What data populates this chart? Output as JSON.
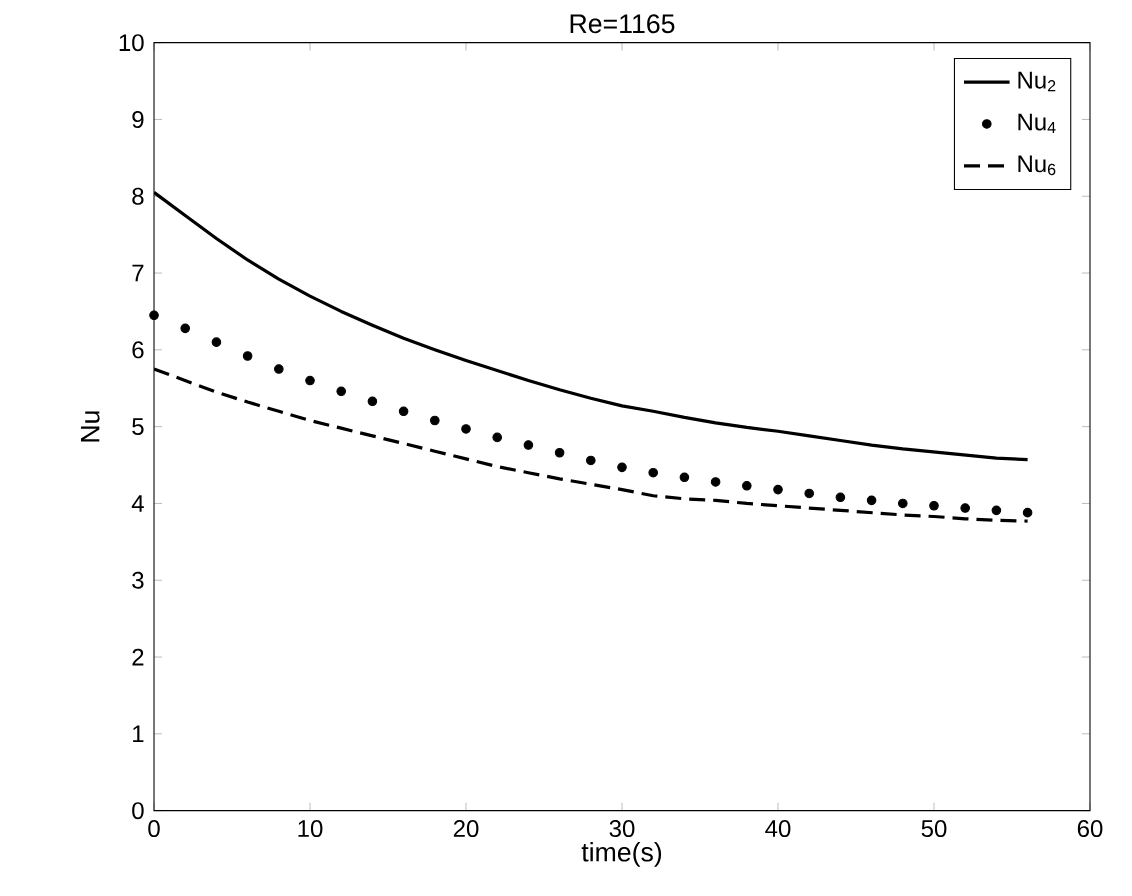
{
  "chart_data": {
    "type": "line",
    "title": "Re=1165",
    "xlabel": "time(s)",
    "ylabel": "Nu",
    "xlim": [
      0,
      60
    ],
    "xticks": [
      0,
      10,
      20,
      30,
      40,
      50,
      60
    ],
    "ylim": [
      0,
      10
    ],
    "yticks": [
      0,
      1,
      2,
      3,
      4,
      5,
      6,
      7,
      8,
      9,
      10
    ],
    "grid": false,
    "legend": "top right",
    "x": [
      0,
      2,
      4,
      6,
      8,
      10,
      12,
      14,
      16,
      18,
      20,
      22,
      24,
      26,
      28,
      30,
      32,
      34,
      36,
      38,
      40,
      42,
      44,
      46,
      48,
      50,
      52,
      54,
      56
    ],
    "series": [
      {
        "name": "Nu$_{2}$",
        "line_style": "solid",
        "color": "#000000",
        "values": [
          8.05,
          7.75,
          7.45,
          7.17,
          6.92,
          6.7,
          6.5,
          6.32,
          6.15,
          6.0,
          5.86,
          5.73,
          5.6,
          5.48,
          5.37,
          5.27,
          5.2,
          5.12,
          5.05,
          4.99,
          4.94,
          4.88,
          4.82,
          4.76,
          4.71,
          4.67,
          4.63,
          4.59,
          4.57
        ]
      },
      {
        "name": "Nu$_{4}$",
        "type": "scatter",
        "marker": "circle",
        "color": "#000000",
        "values": [
          6.45,
          6.28,
          6.1,
          5.92,
          5.75,
          5.6,
          5.46,
          5.33,
          5.2,
          5.08,
          4.97,
          4.86,
          4.76,
          4.66,
          4.56,
          4.47,
          4.4,
          4.34,
          4.28,
          4.23,
          4.18,
          4.13,
          4.08,
          4.04,
          4.0,
          3.97,
          3.94,
          3.91,
          3.88
        ]
      },
      {
        "name": "Nu$_{6}$",
        "line_style": "dashed",
        "color": "#000000",
        "values": [
          5.75,
          5.6,
          5.45,
          5.32,
          5.2,
          5.08,
          4.98,
          4.88,
          4.78,
          4.68,
          4.58,
          4.48,
          4.4,
          4.32,
          4.25,
          4.18,
          4.1,
          4.06,
          4.04,
          4.0,
          3.97,
          3.94,
          3.91,
          3.88,
          3.85,
          3.83,
          3.8,
          3.78,
          3.77
        ]
      }
    ]
  }
}
